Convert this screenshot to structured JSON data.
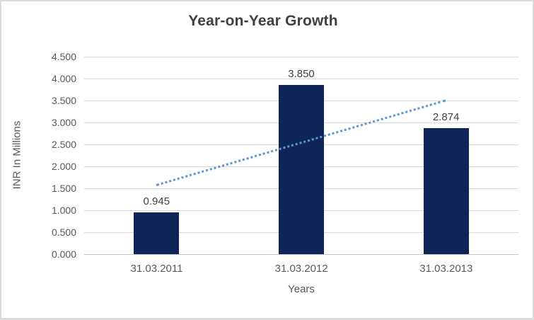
{
  "chart": {
    "colors": {
      "bar": "#0f2557",
      "trendline": "#5b96d2",
      "title_text": "#404040",
      "axis_text": "#595959",
      "gridline": "#d9d9d9",
      "axis_line": "#c6c6c6",
      "frame_border": "#dbdbdb",
      "background": "#ffffff"
    }
  },
  "chart_data": {
    "type": "bar",
    "title": "Year-on-Year Growth",
    "categories": [
      "31.03.2011",
      "31.03.2012",
      "31.03.2013"
    ],
    "values": [
      0.945,
      3.85,
      2.874
    ],
    "data_labels": [
      "0.945",
      "3.850",
      "2.874"
    ],
    "xlabel": "Years",
    "ylabel": "INR In Millions",
    "ylim": [
      0,
      4.5
    ],
    "y_tick_step": 0.5,
    "y_tick_labels": [
      "0.000",
      "0.500",
      "1.000",
      "1.500",
      "2.000",
      "2.500",
      "3.000",
      "3.500",
      "4.000",
      "4.500"
    ],
    "grid": true,
    "legend": "none",
    "trendline": {
      "type": "linear",
      "style": "dotted",
      "start_value": 1.59,
      "end_value": 3.52
    }
  }
}
